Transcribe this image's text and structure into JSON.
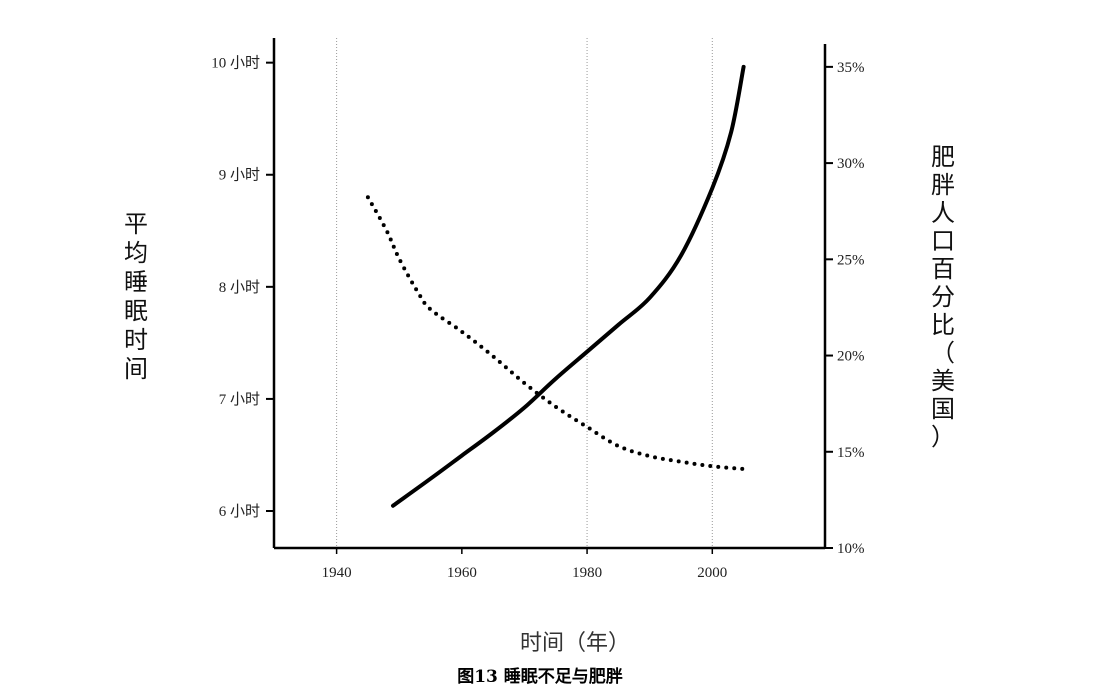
{
  "caption": "图13 睡眠不足与肥胖",
  "chart_data": {
    "type": "line",
    "xlabel": "时间（年）",
    "ylabel_left": "平均睡眠时间",
    "ylabel_right": "肥胖人口百分比（美国）",
    "x_ticks": [
      1940,
      1960,
      1980,
      2000
    ],
    "xlim": [
      1930,
      2018
    ],
    "left_axis": {
      "range": [
        5.67,
        10.22
      ],
      "ticks": [
        6,
        7,
        8,
        9,
        10
      ],
      "tick_labels": [
        "6 小时",
        "7 小时",
        "8 小时",
        "9 小时",
        "10 小时"
      ]
    },
    "right_axis": {
      "range": [
        10,
        36.5
      ],
      "ticks": [
        10,
        15,
        20,
        25,
        30,
        35
      ],
      "tick_labels": [
        "10%",
        "15%",
        "20%",
        "25%",
        "30%",
        "35%"
      ]
    },
    "grid": {
      "vertical_at": [
        1940,
        1980,
        2000
      ]
    },
    "series": [
      {
        "style": "dotted",
        "axis": "left",
        "x": [
          1945,
          1948,
          1950,
          1953,
          1955,
          1960,
          1965,
          1970,
          1975,
          1980,
          1985,
          1990,
          1995,
          2000,
          2006
        ],
        "y": [
          8.8,
          8.5,
          8.25,
          7.95,
          7.8,
          7.6,
          7.38,
          7.14,
          6.93,
          6.75,
          6.58,
          6.49,
          6.44,
          6.4,
          6.37
        ]
      },
      {
        "style": "solid",
        "axis": "right",
        "x": [
          1949,
          1955,
          1960,
          1965,
          1970,
          1975,
          1980,
          1985,
          1990,
          1995,
          2000,
          2003,
          2005
        ],
        "y": [
          12.2,
          13.6,
          14.8,
          16.0,
          17.3,
          18.8,
          20.2,
          21.6,
          23.0,
          25.2,
          28.7,
          31.6,
          35.0
        ]
      }
    ]
  }
}
